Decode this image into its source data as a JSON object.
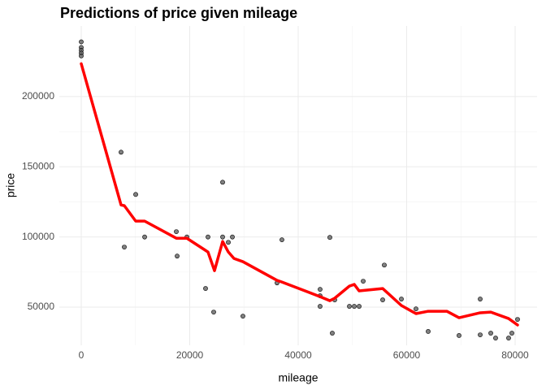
{
  "chart_data": {
    "type": "scatter",
    "title": "Predictions of price given mileage",
    "x_label": "mileage",
    "y_label": "price",
    "xlim": [
      -4045,
      84045
    ],
    "ylim": [
      22832,
      250289
    ],
    "xticks": [
      0,
      20000,
      40000,
      60000,
      80000
    ],
    "yticks": [
      50000,
      100000,
      150000,
      200000
    ],
    "grid": true,
    "series": [
      {
        "type": "scatter",
        "color": "#555555",
        "x": [
          0,
          0,
          0,
          0,
          0,
          7340,
          7940,
          10040,
          11690,
          17530,
          17680,
          19480,
          23370,
          22920,
          24420,
          26070,
          26070,
          27120,
          27870,
          29810,
          36100,
          37000,
          44040,
          44040,
          44040,
          45840,
          46290,
          46740,
          49440,
          50340,
          51240,
          51990,
          55580,
          55880,
          59030,
          61720,
          63970,
          69660,
          73560,
          73560,
          75510,
          76400,
          78800,
          79400,
          80450
        ],
        "values": [
          239000,
          235000,
          233000,
          231000,
          229000,
          160400,
          92800,
          130300,
          100000,
          103800,
          86400,
          100000,
          100000,
          63300,
          46500,
          139000,
          100000,
          96200,
          100000,
          43600,
          67300,
          98000,
          62700,
          58100,
          50600,
          99700,
          31500,
          55200,
          50600,
          50600,
          50600,
          68500,
          55200,
          80000,
          55800,
          48800,
          32700,
          29800,
          30300,
          55800,
          31500,
          28000,
          28000,
          31500,
          41300
        ]
      },
      {
        "type": "line",
        "color": "#ff0000",
        "x": [
          0,
          7340,
          7940,
          10040,
          11690,
          17530,
          19480,
          23370,
          24570,
          26070,
          27120,
          28160,
          29810,
          36100,
          37000,
          44040,
          45840,
          46740,
          49440,
          50340,
          51240,
          55580,
          59030,
          61720,
          63970,
          67410,
          69660,
          73560,
          75510,
          78800,
          80450
        ],
        "values": [
          223400,
          122800,
          122300,
          111300,
          111300,
          99100,
          99100,
          89300,
          76000,
          96800,
          89300,
          84700,
          82400,
          69100,
          67900,
          57500,
          54600,
          56400,
          65000,
          66200,
          61600,
          63300,
          51200,
          45400,
          47100,
          47100,
          42500,
          46000,
          46500,
          41900,
          37300
        ]
      }
    ]
  }
}
